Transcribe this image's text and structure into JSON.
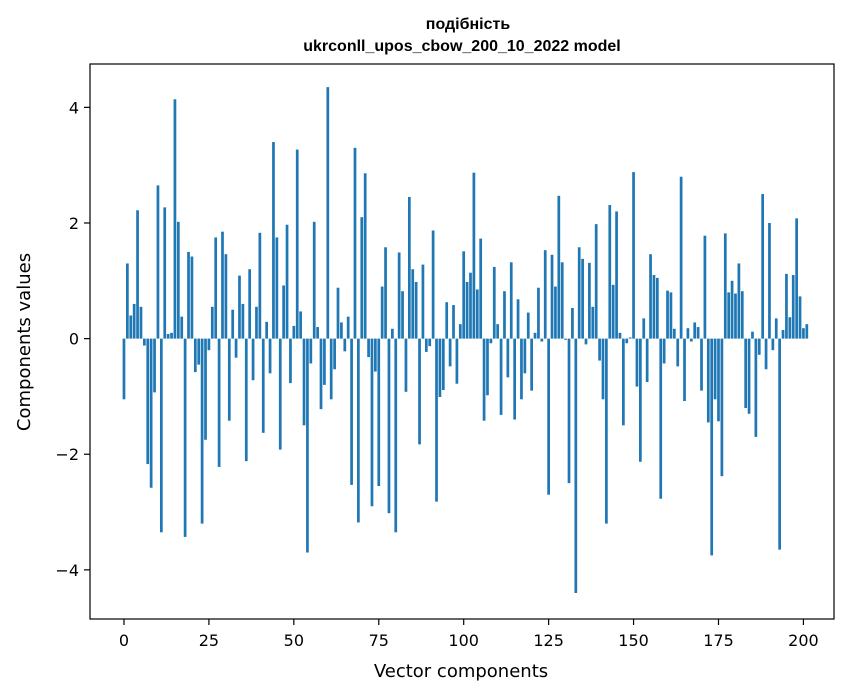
{
  "chart_data": {
    "type": "bar",
    "title_line1": "подібність",
    "title_line2": "ukrconll_upos_cbow_200_10_2022 model",
    "xlabel": "Vector components",
    "ylabel": "Components values",
    "xlim": [
      -10,
      209
    ],
    "ylim": [
      -4.85,
      4.75
    ],
    "xticks": [
      0,
      25,
      50,
      75,
      100,
      125,
      150,
      175,
      200
    ],
    "xtick_labels": [
      "0",
      "25",
      "50",
      "75",
      "100",
      "125",
      "150",
      "175",
      "200"
    ],
    "yticks": [
      -4,
      -2,
      0,
      2,
      4
    ],
    "ytick_labels": [
      "−4",
      "−2",
      "0",
      "2",
      "4"
    ],
    "bar_color": "#1f77b4",
    "values": [
      -1.05,
      1.3,
      0.4,
      0.6,
      2.22,
      0.55,
      -0.12,
      -2.17,
      -2.58,
      -0.93,
      2.65,
      -3.35,
      2.27,
      0.08,
      0.1,
      4.14,
      2.02,
      0.38,
      -3.43,
      1.5,
      1.42,
      -0.58,
      -0.45,
      -3.2,
      -1.75,
      -0.2,
      0.55,
      1.75,
      -2.22,
      1.85,
      1.46,
      -1.42,
      0.5,
      -0.33,
      1.09,
      0.6,
      -2.12,
      1.2,
      -0.72,
      0.55,
      1.83,
      -1.63,
      0.29,
      -0.6,
      3.4,
      1.75,
      -1.92,
      0.92,
      1.97,
      -0.77,
      0.22,
      3.27,
      0.47,
      -1.5,
      -3.7,
      -0.43,
      2.02,
      0.2,
      -1.22,
      -0.8,
      4.35,
      -1.05,
      -0.53,
      0.88,
      0.28,
      -0.22,
      0.38,
      -2.53,
      3.3,
      -3.18,
      2.1,
      2.86,
      -0.32,
      -2.9,
      -0.57,
      -2.55,
      0.9,
      1.58,
      -3.02,
      0.17,
      -3.35,
      1.49,
      0.82,
      -0.92,
      2.45,
      1.2,
      0.98,
      -1.83,
      1.28,
      -0.23,
      -0.13,
      1.87,
      -2.82,
      -1.01,
      -0.89,
      0.63,
      -0.48,
      0.58,
      -0.78,
      0.25,
      1.51,
      0.98,
      1.14,
      2.87,
      0.85,
      1.73,
      -1.42,
      -0.98,
      -0.08,
      1.24,
      0.25,
      -1.32,
      0.82,
      -0.67,
      1.32,
      -1.4,
      0.68,
      -1.05,
      -0.6,
      0.45,
      -0.9,
      0.1,
      0.88,
      -0.05,
      1.53,
      -2.7,
      1.45,
      0.9,
      2.47,
      1.32,
      -0.02,
      -2.5,
      0.53,
      -4.4,
      1.58,
      1.38,
      -0.1,
      1.31,
      0.55,
      1.98,
      -0.38,
      -1.05,
      -3.2,
      2.31,
      0.93,
      2.2,
      0.1,
      -1.5,
      -0.08,
      0.02,
      2.88,
      -0.83,
      -2.13,
      0.35,
      -0.75,
      1.46,
      1.1,
      1.05,
      -2.77,
      -0.43,
      0.83,
      0.8,
      0.17,
      -0.48,
      2.8,
      -1.08,
      0.18,
      -0.05,
      0.28,
      0.2,
      -0.9,
      1.78,
      -1.45,
      -3.75,
      -1.05,
      -1.43,
      -2.38,
      1.82,
      0.8,
      1.0,
      0.78,
      1.3,
      0.82,
      -1.2,
      -1.3,
      0.12,
      -1.7,
      -0.28,
      2.5,
      -0.53,
      2.0,
      -0.2,
      0.35,
      -3.65,
      0.15,
      1.12,
      0.37,
      1.1,
      2.08,
      0.73,
      0.18,
      0.25
    ]
  }
}
